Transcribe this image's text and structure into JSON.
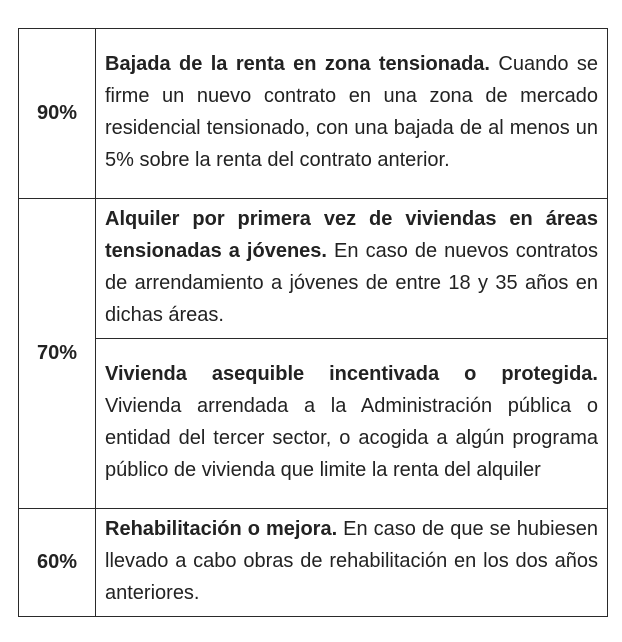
{
  "table": {
    "rows": [
      {
        "percentage": "90%",
        "items": [
          {
            "title": "Bajada de la renta en zona tensionada.",
            "text": "Cuando se firme un nuevo contrato en una zona de mercado residencial tensionado, con una bajada de al menos un 5% sobre la renta del contrato anterior."
          }
        ]
      },
      {
        "percentage": "70%",
        "items": [
          {
            "title": "Alquiler por primera vez de viviendas en áreas tensionadas a jóvenes.",
            "text": "En caso de nuevos contratos de arrendamiento a jóvenes de entre 18 y 35 años en dichas áreas."
          },
          {
            "title": "Vivienda asequible incentivada o protegida.",
            "text": "Vivienda arrendada a la Administración pública o entidad del tercer sector, o acogida a algún programa público de vivienda que limite la renta del alquiler"
          }
        ]
      },
      {
        "percentage": "60%",
        "items": [
          {
            "title": "Rehabilitación o mejora.",
            "text": "En caso de que se hubiesen llevado a cabo obras de rehabilitación en los dos años anteriores."
          }
        ]
      }
    ]
  }
}
